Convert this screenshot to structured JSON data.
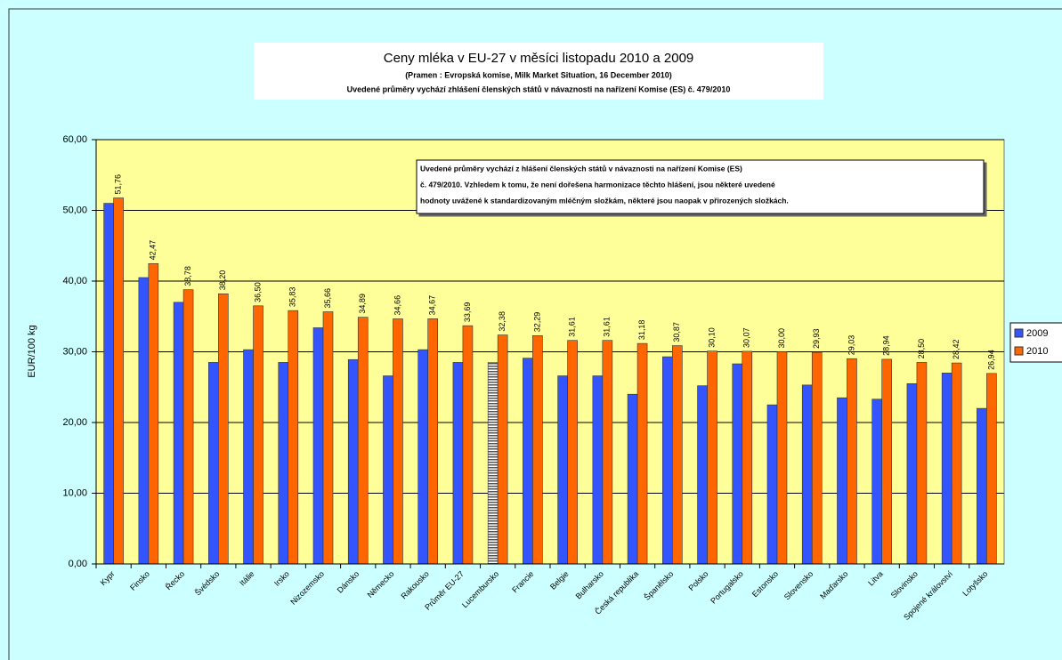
{
  "chart_data": {
    "type": "bar",
    "title": "Ceny mléka v EU-27 v měsíci listopadu 2010 a 2009",
    "subtitle": "(Pramen : Evropská komise, Milk Market Situation, 16 December 2010)",
    "subtitle2": "Uvedené průměry vychází zhlášení členských států v návaznosti na nařízení Komise (ES) č. 479/2010",
    "annotation": [
      "Uvedené průměry vychází z hlášení členských států v návaznosti na nařízení Komise (ES)",
      "č. 479/2010. Vzhledem k tomu, že není dořešena harmonizace těchto hlášení, jsou některé uvedené",
      "hodnoty uvážené k standardizovaným mléčným složkám, některé jsou naopak v přirozených složkách."
    ],
    "ylabel": "EUR/100 kg",
    "categories": [
      "Kypr",
      "Finsko",
      "Řecko",
      "Švédsko",
      "Itálie",
      "Irsko",
      "Nizozemsko",
      "Dánsko",
      "Německo",
      "Rakousko",
      "Průměr EU-27",
      "Lucembursko",
      "Francie",
      "Belgie",
      "Bulharsko",
      "Česká republika",
      "Španělsko",
      "Polsko",
      "Portugalsko",
      "Estonsko",
      "Slovensko",
      "Maďarsko",
      "Litva",
      "Slovinsko",
      "Spojené království",
      "Lotyšsko"
    ],
    "series": [
      {
        "name": "2009",
        "color": "#3355ff",
        "patterned": [
          11
        ],
        "values": [
          51,
          40.5,
          37,
          28.5,
          30.3,
          28.5,
          33.4,
          28.9,
          26.6,
          30.3,
          28.5,
          28.5,
          29.1,
          26.6,
          26.6,
          24,
          29.3,
          25.2,
          28.3,
          22.5,
          25.3,
          23.5,
          23.3,
          25.5,
          27,
          22
        ]
      },
      {
        "name": "2010",
        "color": "#ff6600",
        "values": [
          51.76,
          42.47,
          38.78,
          38.2,
          36.5,
          35.83,
          35.66,
          34.89,
          34.66,
          34.67,
          33.69,
          32.38,
          32.29,
          31.61,
          31.61,
          31.18,
          30.87,
          30.1,
          30.07,
          30,
          29.93,
          29.03,
          28.94,
          28.5,
          28.42,
          26.94
        ],
        "value_labels": [
          "51,76",
          "42,47",
          "38,78",
          "38,20",
          "36,50",
          "35,83",
          "35,66",
          "34,89",
          "34,66",
          "34,67",
          "33,69",
          "32,38",
          "32,29",
          "31,61",
          "31,61",
          "31,18",
          "30,87",
          "30,10",
          "30,07",
          "30,00",
          "29,93",
          "29,03",
          "28,94",
          "28,50",
          "28,42",
          "26,94"
        ]
      }
    ],
    "ylim": [
      0,
      60
    ],
    "yticks": [
      {
        "value": 0,
        "label": "0,00"
      },
      {
        "value": 10,
        "label": "10,00"
      },
      {
        "value": 20,
        "label": "20,00"
      },
      {
        "value": 30,
        "label": "30,00"
      },
      {
        "value": 40,
        "label": "40,00"
      },
      {
        "value": 50,
        "label": "50,00"
      },
      {
        "value": 60,
        "label": "60,00"
      }
    ],
    "grid": true,
    "legend": "right"
  }
}
